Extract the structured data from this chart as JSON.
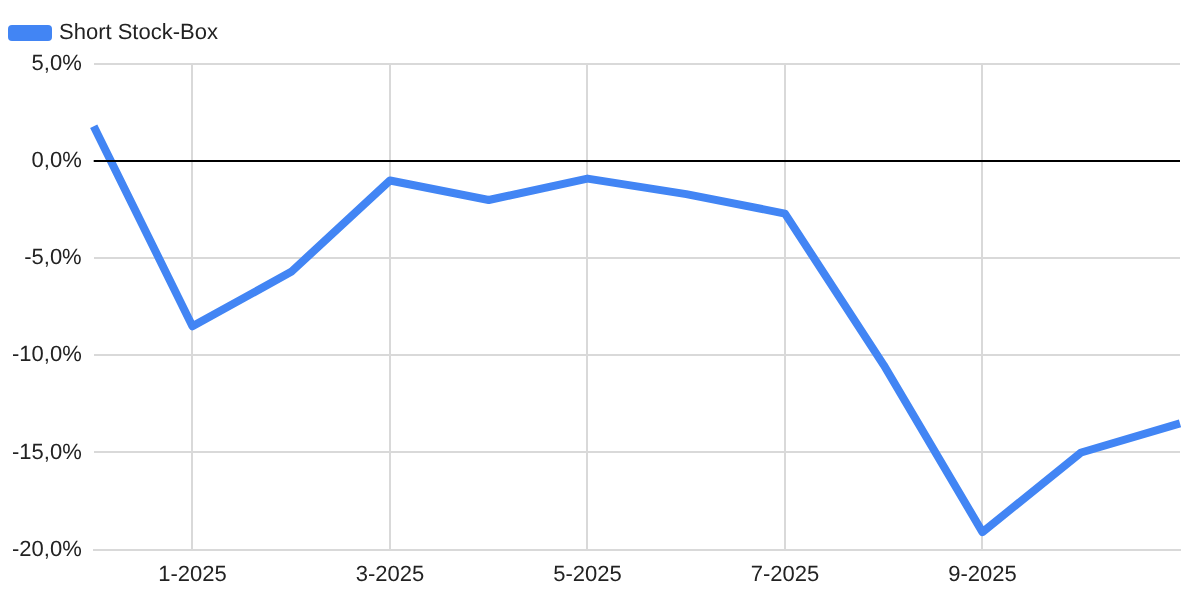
{
  "chart_data": {
    "type": "line",
    "categories": [
      null,
      "1-2025",
      null,
      "3-2025",
      null,
      "5-2025",
      null,
      "7-2025",
      null,
      "9-2025",
      null,
      null
    ],
    "series": [
      {
        "name": "Short Stock-Box",
        "color": "#4285f4",
        "values": [
          1.8,
          -8.5,
          -5.7,
          -1.0,
          -2.0,
          -0.9,
          -1.7,
          -2.7,
          -10.5,
          -19.1,
          -15.0,
          -13.5
        ]
      }
    ],
    "ylim": [
      -20,
      5
    ],
    "yticks": [
      {
        "value": -20,
        "label": "-20,0%"
      },
      {
        "value": -15,
        "label": "-15,0%"
      },
      {
        "value": -10,
        "label": "-10,0%"
      },
      {
        "value": -5,
        "label": "-5,0%"
      },
      {
        "value": 0,
        "label": "0,0%"
      },
      {
        "value": 5,
        "label": "5,0%"
      }
    ],
    "ref_lines": [
      {
        "axis": "y",
        "value": 0,
        "color": "#000000"
      }
    ],
    "grid": true,
    "legend": "top left",
    "marker": "none",
    "line_style": "solid"
  }
}
